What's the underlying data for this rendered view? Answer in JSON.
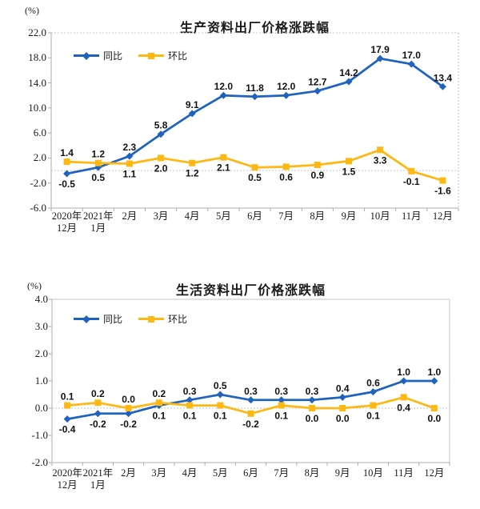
{
  "unit": "(%)",
  "chart_data": [
    {
      "type": "line",
      "title": "生产资料出厂价格涨跌幅",
      "ylabel": "(%)",
      "xlabel": "",
      "ylim": [
        -6.0,
        22.0
      ],
      "y_ticks": [
        "22.0",
        "18.0",
        "14.0",
        "10.0",
        "6.0",
        "2.0",
        "-2.0",
        "-6.0"
      ],
      "grid": "dotted zero line only",
      "legend_position": "inside top-left",
      "categories": [
        "2020年12月",
        "2021年1月",
        "2月",
        "3月",
        "4月",
        "5月",
        "6月",
        "7月",
        "8月",
        "9月",
        "10月",
        "11月",
        "12月"
      ],
      "series": [
        {
          "name": "同比",
          "color": "#1f63be",
          "marker": "diamond",
          "values": [
            -0.5,
            0.5,
            2.3,
            5.8,
            9.1,
            12.0,
            11.8,
            12.0,
            12.7,
            14.2,
            17.9,
            17.0,
            13.4
          ]
        },
        {
          "name": "环比",
          "color": "#fdb813",
          "marker": "square",
          "values": [
            1.4,
            1.2,
            1.1,
            2.0,
            1.2,
            2.1,
            0.5,
            0.6,
            0.9,
            1.5,
            3.3,
            -0.1,
            -1.6
          ]
        }
      ]
    },
    {
      "type": "line",
      "title": "生活资料出厂价格涨跌幅",
      "ylabel": "(%)",
      "xlabel": "",
      "ylim": [
        -2.0,
        4.0
      ],
      "y_ticks": [
        "4.0",
        "3.0",
        "2.0",
        "1.0",
        "0.0",
        "-1.0",
        "-2.0"
      ],
      "grid": "dotted zero line only",
      "legend_position": "inside top-left",
      "categories": [
        "2020年12月",
        "2021年1月",
        "2月",
        "3月",
        "4月",
        "5月",
        "6月",
        "7月",
        "8月",
        "9月",
        "10月",
        "11月",
        "12月"
      ],
      "series": [
        {
          "name": "同比",
          "color": "#1f63be",
          "marker": "diamond",
          "values": [
            -0.4,
            -0.2,
            -0.2,
            0.1,
            0.3,
            0.5,
            0.3,
            0.3,
            0.3,
            0.4,
            0.6,
            1.0,
            1.0
          ]
        },
        {
          "name": "环比",
          "color": "#fdb813",
          "marker": "square",
          "values": [
            0.1,
            0.2,
            0.0,
            0.2,
            0.1,
            0.1,
            -0.2,
            0.1,
            0.0,
            0.0,
            0.1,
            0.4,
            0.0
          ]
        }
      ]
    }
  ],
  "colors": {
    "yoy_line": "#1f63be",
    "mom_line": "#fdb813",
    "axis": "#adadad",
    "dotted_grid": "#c6c6c6",
    "text": "#1a1a1a"
  }
}
